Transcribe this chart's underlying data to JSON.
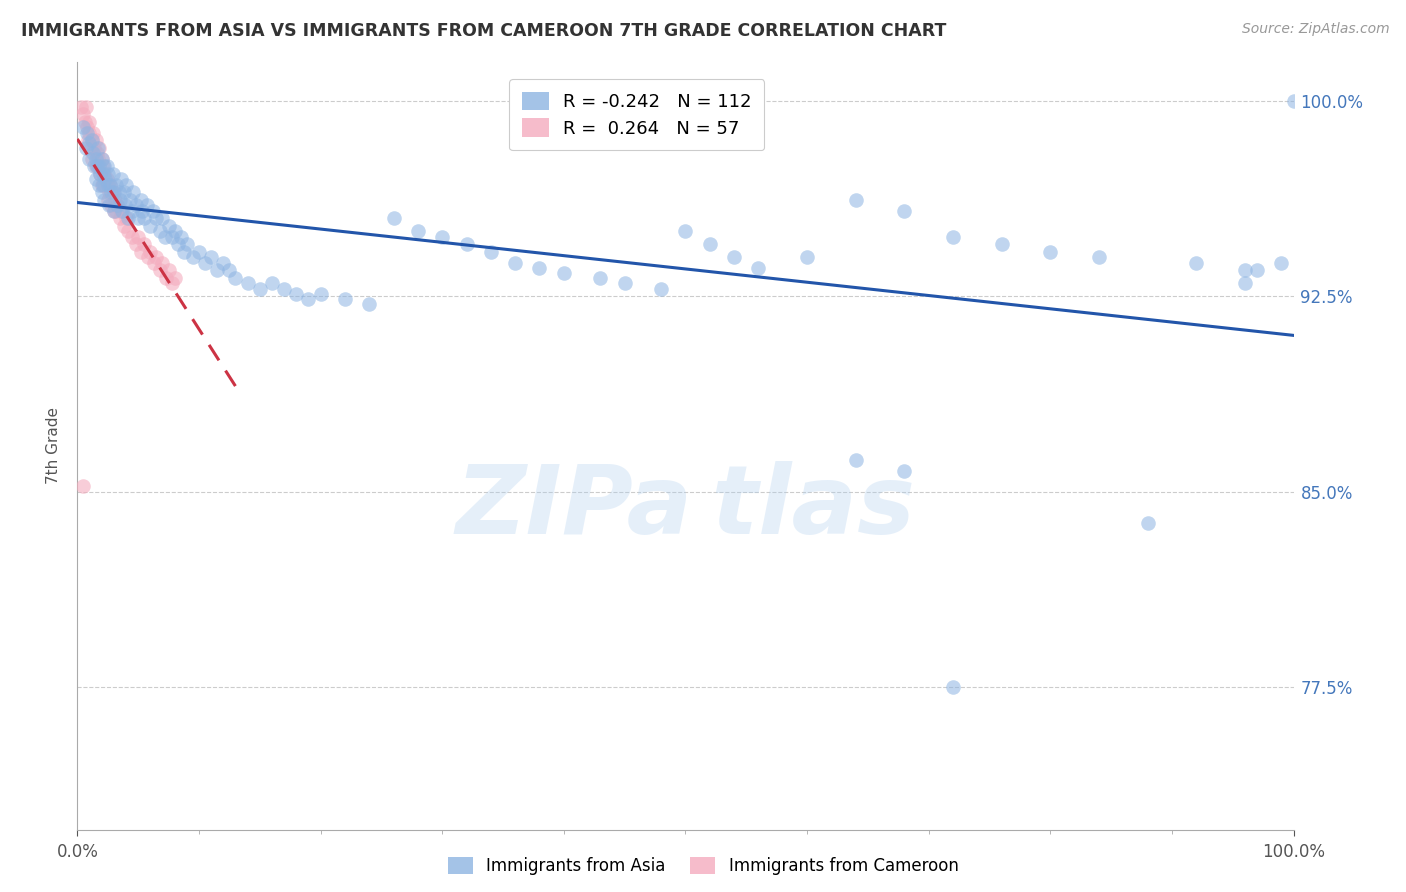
{
  "title": "IMMIGRANTS FROM ASIA VS IMMIGRANTS FROM CAMEROON 7TH GRADE CORRELATION CHART",
  "source": "Source: ZipAtlas.com",
  "ylabel": "7th Grade",
  "xlim": [
    0.0,
    1.0
  ],
  "ylim": [
    0.72,
    1.015
  ],
  "yticks": [
    0.775,
    0.85,
    0.925,
    1.0
  ],
  "ytick_labels": [
    "77.5%",
    "85.0%",
    "92.5%",
    "100.0%"
  ],
  "xtick_positions": [
    0.0,
    1.0
  ],
  "xtick_labels": [
    "0.0%",
    "100.0%"
  ],
  "blue_color": "#8DB4E2",
  "pink_color": "#F4ACBE",
  "blue_line_color": "#2255AA",
  "pink_line_color": "#CC3344",
  "blue_R": -0.242,
  "blue_N": 112,
  "pink_R": 0.264,
  "pink_N": 57,
  "blue_scatter_x": [
    0.005,
    0.007,
    0.008,
    0.01,
    0.01,
    0.012,
    0.013,
    0.014,
    0.015,
    0.015,
    0.016,
    0.017,
    0.018,
    0.018,
    0.019,
    0.02,
    0.02,
    0.021,
    0.021,
    0.022,
    0.022,
    0.023,
    0.024,
    0.025,
    0.025,
    0.026,
    0.027,
    0.028,
    0.029,
    0.03,
    0.03,
    0.032,
    0.033,
    0.034,
    0.035,
    0.036,
    0.037,
    0.038,
    0.039,
    0.04,
    0.042,
    0.043,
    0.045,
    0.046,
    0.048,
    0.05,
    0.052,
    0.053,
    0.055,
    0.057,
    0.06,
    0.062,
    0.065,
    0.068,
    0.07,
    0.072,
    0.075,
    0.078,
    0.08,
    0.083,
    0.085,
    0.088,
    0.09,
    0.095,
    0.1,
    0.105,
    0.11,
    0.115,
    0.12,
    0.125,
    0.13,
    0.14,
    0.15,
    0.16,
    0.17,
    0.18,
    0.19,
    0.2,
    0.22,
    0.24,
    0.26,
    0.28,
    0.3,
    0.32,
    0.34,
    0.36,
    0.38,
    0.4,
    0.43,
    0.45,
    0.48,
    0.5,
    0.52,
    0.54,
    0.56,
    0.6,
    0.64,
    0.68,
    0.72,
    0.76,
    0.8,
    0.84,
    0.88,
    0.92,
    0.96,
    0.64,
    0.68,
    0.72,
    0.96,
    0.97,
    0.99,
    1.0
  ],
  "blue_scatter_y": [
    0.99,
    0.982,
    0.988,
    0.984,
    0.978,
    0.985,
    0.98,
    0.975,
    0.978,
    0.97,
    0.975,
    0.982,
    0.968,
    0.975,
    0.972,
    0.978,
    0.965,
    0.972,
    0.968,
    0.975,
    0.962,
    0.97,
    0.975,
    0.968,
    0.972,
    0.96,
    0.968,
    0.965,
    0.972,
    0.958,
    0.965,
    0.968,
    0.96,
    0.965,
    0.962,
    0.97,
    0.958,
    0.965,
    0.96,
    0.968,
    0.955,
    0.962,
    0.958,
    0.965,
    0.96,
    0.955,
    0.962,
    0.958,
    0.955,
    0.96,
    0.952,
    0.958,
    0.955,
    0.95,
    0.955,
    0.948,
    0.952,
    0.948,
    0.95,
    0.945,
    0.948,
    0.942,
    0.945,
    0.94,
    0.942,
    0.938,
    0.94,
    0.935,
    0.938,
    0.935,
    0.932,
    0.93,
    0.928,
    0.93,
    0.928,
    0.926,
    0.924,
    0.926,
    0.924,
    0.922,
    0.955,
    0.95,
    0.948,
    0.945,
    0.942,
    0.938,
    0.936,
    0.934,
    0.932,
    0.93,
    0.928,
    0.95,
    0.945,
    0.94,
    0.936,
    0.94,
    0.962,
    0.958,
    0.948,
    0.945,
    0.942,
    0.94,
    0.838,
    0.938,
    0.935,
    0.862,
    0.858,
    0.775,
    0.93,
    0.935,
    0.938,
    1.0
  ],
  "pink_scatter_x": [
    0.003,
    0.005,
    0.006,
    0.007,
    0.008,
    0.009,
    0.01,
    0.01,
    0.011,
    0.012,
    0.012,
    0.013,
    0.014,
    0.015,
    0.015,
    0.016,
    0.017,
    0.018,
    0.018,
    0.019,
    0.02,
    0.02,
    0.021,
    0.022,
    0.023,
    0.024,
    0.025,
    0.025,
    0.026,
    0.027,
    0.028,
    0.029,
    0.03,
    0.031,
    0.032,
    0.033,
    0.035,
    0.036,
    0.038,
    0.04,
    0.042,
    0.045,
    0.048,
    0.05,
    0.052,
    0.055,
    0.058,
    0.06,
    0.063,
    0.065,
    0.068,
    0.07,
    0.073,
    0.075,
    0.078,
    0.08,
    0.005
  ],
  "pink_scatter_y": [
    0.998,
    0.995,
    0.992,
    0.998,
    0.99,
    0.985,
    0.992,
    0.988,
    0.982,
    0.985,
    0.978,
    0.988,
    0.982,
    0.985,
    0.975,
    0.98,
    0.978,
    0.975,
    0.982,
    0.972,
    0.978,
    0.968,
    0.975,
    0.972,
    0.968,
    0.97,
    0.968,
    0.962,
    0.965,
    0.968,
    0.96,
    0.965,
    0.958,
    0.962,
    0.958,
    0.96,
    0.955,
    0.958,
    0.952,
    0.955,
    0.95,
    0.948,
    0.945,
    0.948,
    0.942,
    0.945,
    0.94,
    0.942,
    0.938,
    0.94,
    0.935,
    0.938,
    0.932,
    0.935,
    0.93,
    0.932,
    0.852
  ],
  "watermark_text": "ZIPa tlas",
  "background_color": "#FFFFFF",
  "grid_color": "#CCCCCC",
  "pink_trendline_xlim": [
    0.0,
    0.13
  ],
  "blue_trendline_xlim": [
    0.0,
    1.0
  ]
}
